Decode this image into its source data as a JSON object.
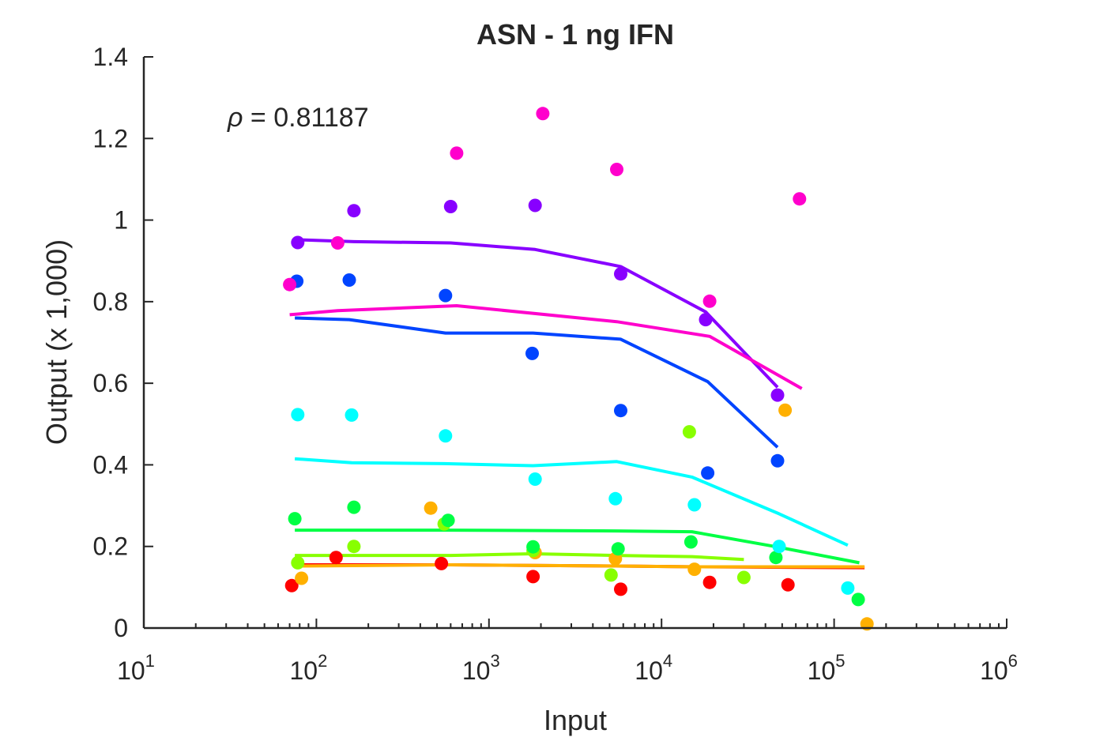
{
  "chart_data": {
    "type": "scatter",
    "title": "ASN - 1 ng IFN",
    "xlabel": "Input",
    "ylabel": "Output (x 1,000)",
    "xscale": "log",
    "xlim": [
      10,
      1000000
    ],
    "ylim": [
      0,
      1.4
    ],
    "x_ticks": [
      {
        "base": "10",
        "exp": "1"
      },
      {
        "base": "10",
        "exp": "2"
      },
      {
        "base": "10",
        "exp": "3"
      },
      {
        "base": "10",
        "exp": "4"
      },
      {
        "base": "10",
        "exp": "5"
      },
      {
        "base": "10",
        "exp": "6"
      }
    ],
    "y_ticks": [
      "0",
      "0.2",
      "0.4",
      "0.6",
      "0.8",
      "1",
      "1.2",
      "1.4"
    ],
    "y_tick_values": [
      0,
      0.2,
      0.4,
      0.6,
      0.8,
      1.0,
      1.2,
      1.4
    ],
    "grid": false,
    "annotation": {
      "symbol": "ρ",
      "text": " = 0.81187"
    },
    "series": [
      {
        "color": "#ff0000",
        "points": [
          [
            72,
            0.104
          ],
          [
            130,
            0.173
          ],
          [
            530,
            0.158
          ],
          [
            1800,
            0.126
          ],
          [
            5800,
            0.095
          ],
          [
            19000,
            0.112
          ],
          [
            54000,
            0.106
          ]
        ],
        "fit": [
          [
            75,
            0.155
          ],
          [
            600,
            0.155
          ],
          [
            5500,
            0.152
          ],
          [
            16000,
            0.15
          ],
          [
            150000,
            0.148
          ]
        ]
      },
      {
        "color": "#ffb000",
        "points": [
          [
            82,
            0.122
          ],
          [
            460,
            0.294
          ],
          [
            1850,
            0.185
          ],
          [
            5400,
            0.17
          ],
          [
            15500,
            0.144
          ],
          [
            52000,
            0.534
          ],
          [
            155000,
            0.01
          ]
        ],
        "fit": [
          [
            75,
            0.152
          ],
          [
            600,
            0.155
          ],
          [
            5500,
            0.152
          ],
          [
            16000,
            0.15
          ],
          [
            150000,
            0.15
          ]
        ]
      },
      {
        "color": "#88ff00",
        "points": [
          [
            78,
            0.16
          ],
          [
            165,
            0.2
          ],
          [
            550,
            0.255
          ],
          [
            1800,
            0.19
          ],
          [
            5100,
            0.13
          ],
          [
            14500,
            0.481
          ],
          [
            30000,
            0.124
          ]
        ],
        "fit": [
          [
            75,
            0.178
          ],
          [
            600,
            0.178
          ],
          [
            1800,
            0.182
          ],
          [
            5500,
            0.178
          ],
          [
            15000,
            0.175
          ],
          [
            30000,
            0.168
          ]
        ]
      },
      {
        "color": "#00ff44",
        "points": [
          [
            75,
            0.268
          ],
          [
            165,
            0.296
          ],
          [
            580,
            0.264
          ],
          [
            1800,
            0.199
          ],
          [
            5600,
            0.194
          ],
          [
            14800,
            0.211
          ],
          [
            46000,
            0.173
          ],
          [
            138000,
            0.07
          ]
        ],
        "fit": [
          [
            75,
            0.24
          ],
          [
            600,
            0.24
          ],
          [
            5500,
            0.238
          ],
          [
            15000,
            0.236
          ],
          [
            45000,
            0.2
          ],
          [
            140000,
            0.16
          ]
        ]
      },
      {
        "color": "#00ffff",
        "points": [
          [
            78,
            0.523
          ],
          [
            160,
            0.522
          ],
          [
            560,
            0.471
          ],
          [
            1850,
            0.365
          ],
          [
            5400,
            0.317
          ],
          [
            15500,
            0.302
          ],
          [
            48000,
            0.2
          ],
          [
            120000,
            0.098
          ]
        ],
        "fit": [
          [
            75,
            0.415
          ],
          [
            160,
            0.405
          ],
          [
            550,
            0.403
          ],
          [
            1800,
            0.398
          ],
          [
            5500,
            0.408
          ],
          [
            15000,
            0.37
          ],
          [
            48000,
            0.28
          ],
          [
            120000,
            0.203
          ]
        ]
      },
      {
        "color": "#0044ff",
        "points": [
          [
            77,
            0.85
          ],
          [
            155,
            0.853
          ],
          [
            560,
            0.815
          ],
          [
            1780,
            0.673
          ],
          [
            5800,
            0.533
          ],
          [
            18500,
            0.38
          ],
          [
            47000,
            0.41
          ]
        ],
        "fit": [
          [
            75,
            0.76
          ],
          [
            155,
            0.756
          ],
          [
            560,
            0.723
          ],
          [
            1800,
            0.723
          ],
          [
            5800,
            0.708
          ],
          [
            18500,
            0.604
          ],
          [
            47000,
            0.443
          ]
        ]
      },
      {
        "color": "#8800ff",
        "points": [
          [
            78,
            0.945
          ],
          [
            165,
            1.023
          ],
          [
            600,
            1.033
          ],
          [
            1850,
            1.036
          ],
          [
            5800,
            0.868
          ],
          [
            18000,
            0.756
          ],
          [
            47000,
            0.571
          ]
        ],
        "fit": [
          [
            75,
            0.952
          ],
          [
            165,
            0.947
          ],
          [
            600,
            0.944
          ],
          [
            1850,
            0.928
          ],
          [
            5800,
            0.886
          ],
          [
            18000,
            0.775
          ],
          [
            47000,
            0.59
          ]
        ]
      },
      {
        "color": "#ff00cc",
        "points": [
          [
            70,
            0.842
          ],
          [
            133,
            0.944
          ],
          [
            650,
            1.164
          ],
          [
            2050,
            1.261
          ],
          [
            5500,
            1.124
          ],
          [
            19000,
            0.801
          ],
          [
            63000,
            1.052
          ]
        ],
        "fit": [
          [
            70,
            0.768
          ],
          [
            133,
            0.778
          ],
          [
            650,
            0.79
          ],
          [
            5500,
            0.751
          ],
          [
            19000,
            0.715
          ],
          [
            65000,
            0.587
          ]
        ]
      }
    ]
  }
}
